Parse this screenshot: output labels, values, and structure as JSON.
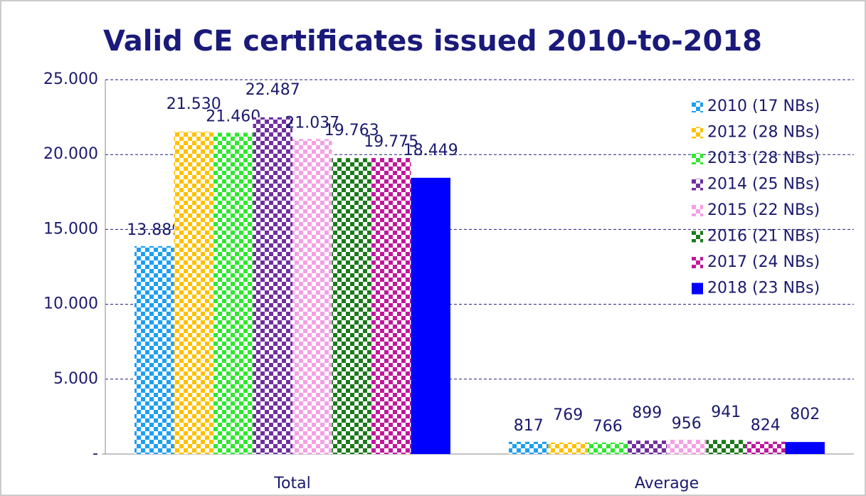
{
  "chart_data": {
    "type": "bar",
    "title": "Valid CE certificates issued 2010-to-2018",
    "categories": [
      "Total",
      "Average"
    ],
    "series": [
      {
        "name": "2010 (17 NBs)",
        "color": "#1e9ff0",
        "pattern": "checker",
        "values": [
          13889,
          817
        ],
        "value_labels": [
          "13.889",
          "817"
        ]
      },
      {
        "name": "2012 (28 NBs)",
        "color": "#ffc000",
        "pattern": "checker",
        "values": [
          21530,
          769
        ],
        "value_labels": [
          "21.530",
          "769"
        ]
      },
      {
        "name": "2013 (28 NBs)",
        "color": "#2ee82e",
        "pattern": "checker",
        "values": [
          21460,
          766
        ],
        "value_labels": [
          "21.460",
          "766"
        ]
      },
      {
        "name": "2014 (25 NBs)",
        "color": "#7030a0",
        "pattern": "checker",
        "values": [
          22487,
          899
        ],
        "value_labels": [
          "22.487",
          "899"
        ]
      },
      {
        "name": "2015 (22 NBs)",
        "color": "#f4a0e4",
        "pattern": "checker",
        "values": [
          21037,
          956
        ],
        "value_labels": [
          "21.037",
          "956"
        ]
      },
      {
        "name": "2016 (21 NBs)",
        "color": "#1a7a1a",
        "pattern": "checker",
        "values": [
          19763,
          941
        ],
        "value_labels": [
          "19.763",
          "941"
        ]
      },
      {
        "name": "2017 (24 NBs)",
        "color": "#c0189c",
        "pattern": "checker",
        "values": [
          19775,
          824
        ],
        "value_labels": [
          "19.775",
          "824"
        ]
      },
      {
        "name": "2018 (23 NBs)",
        "color": "#0000ff",
        "pattern": "solid",
        "values": [
          18449,
          802
        ],
        "value_labels": [
          "18.449",
          "802"
        ]
      }
    ],
    "ylim": [
      0,
      25000
    ],
    "yticks": [
      {
        "value": 0,
        "label": "-"
      },
      {
        "value": 5000,
        "label": "5.000"
      },
      {
        "value": 10000,
        "label": "10.000"
      },
      {
        "value": 15000,
        "label": "15.000"
      },
      {
        "value": 20000,
        "label": "20.000"
      },
      {
        "value": 25000,
        "label": "25.000"
      }
    ],
    "grid": true,
    "legend": "upper right"
  }
}
